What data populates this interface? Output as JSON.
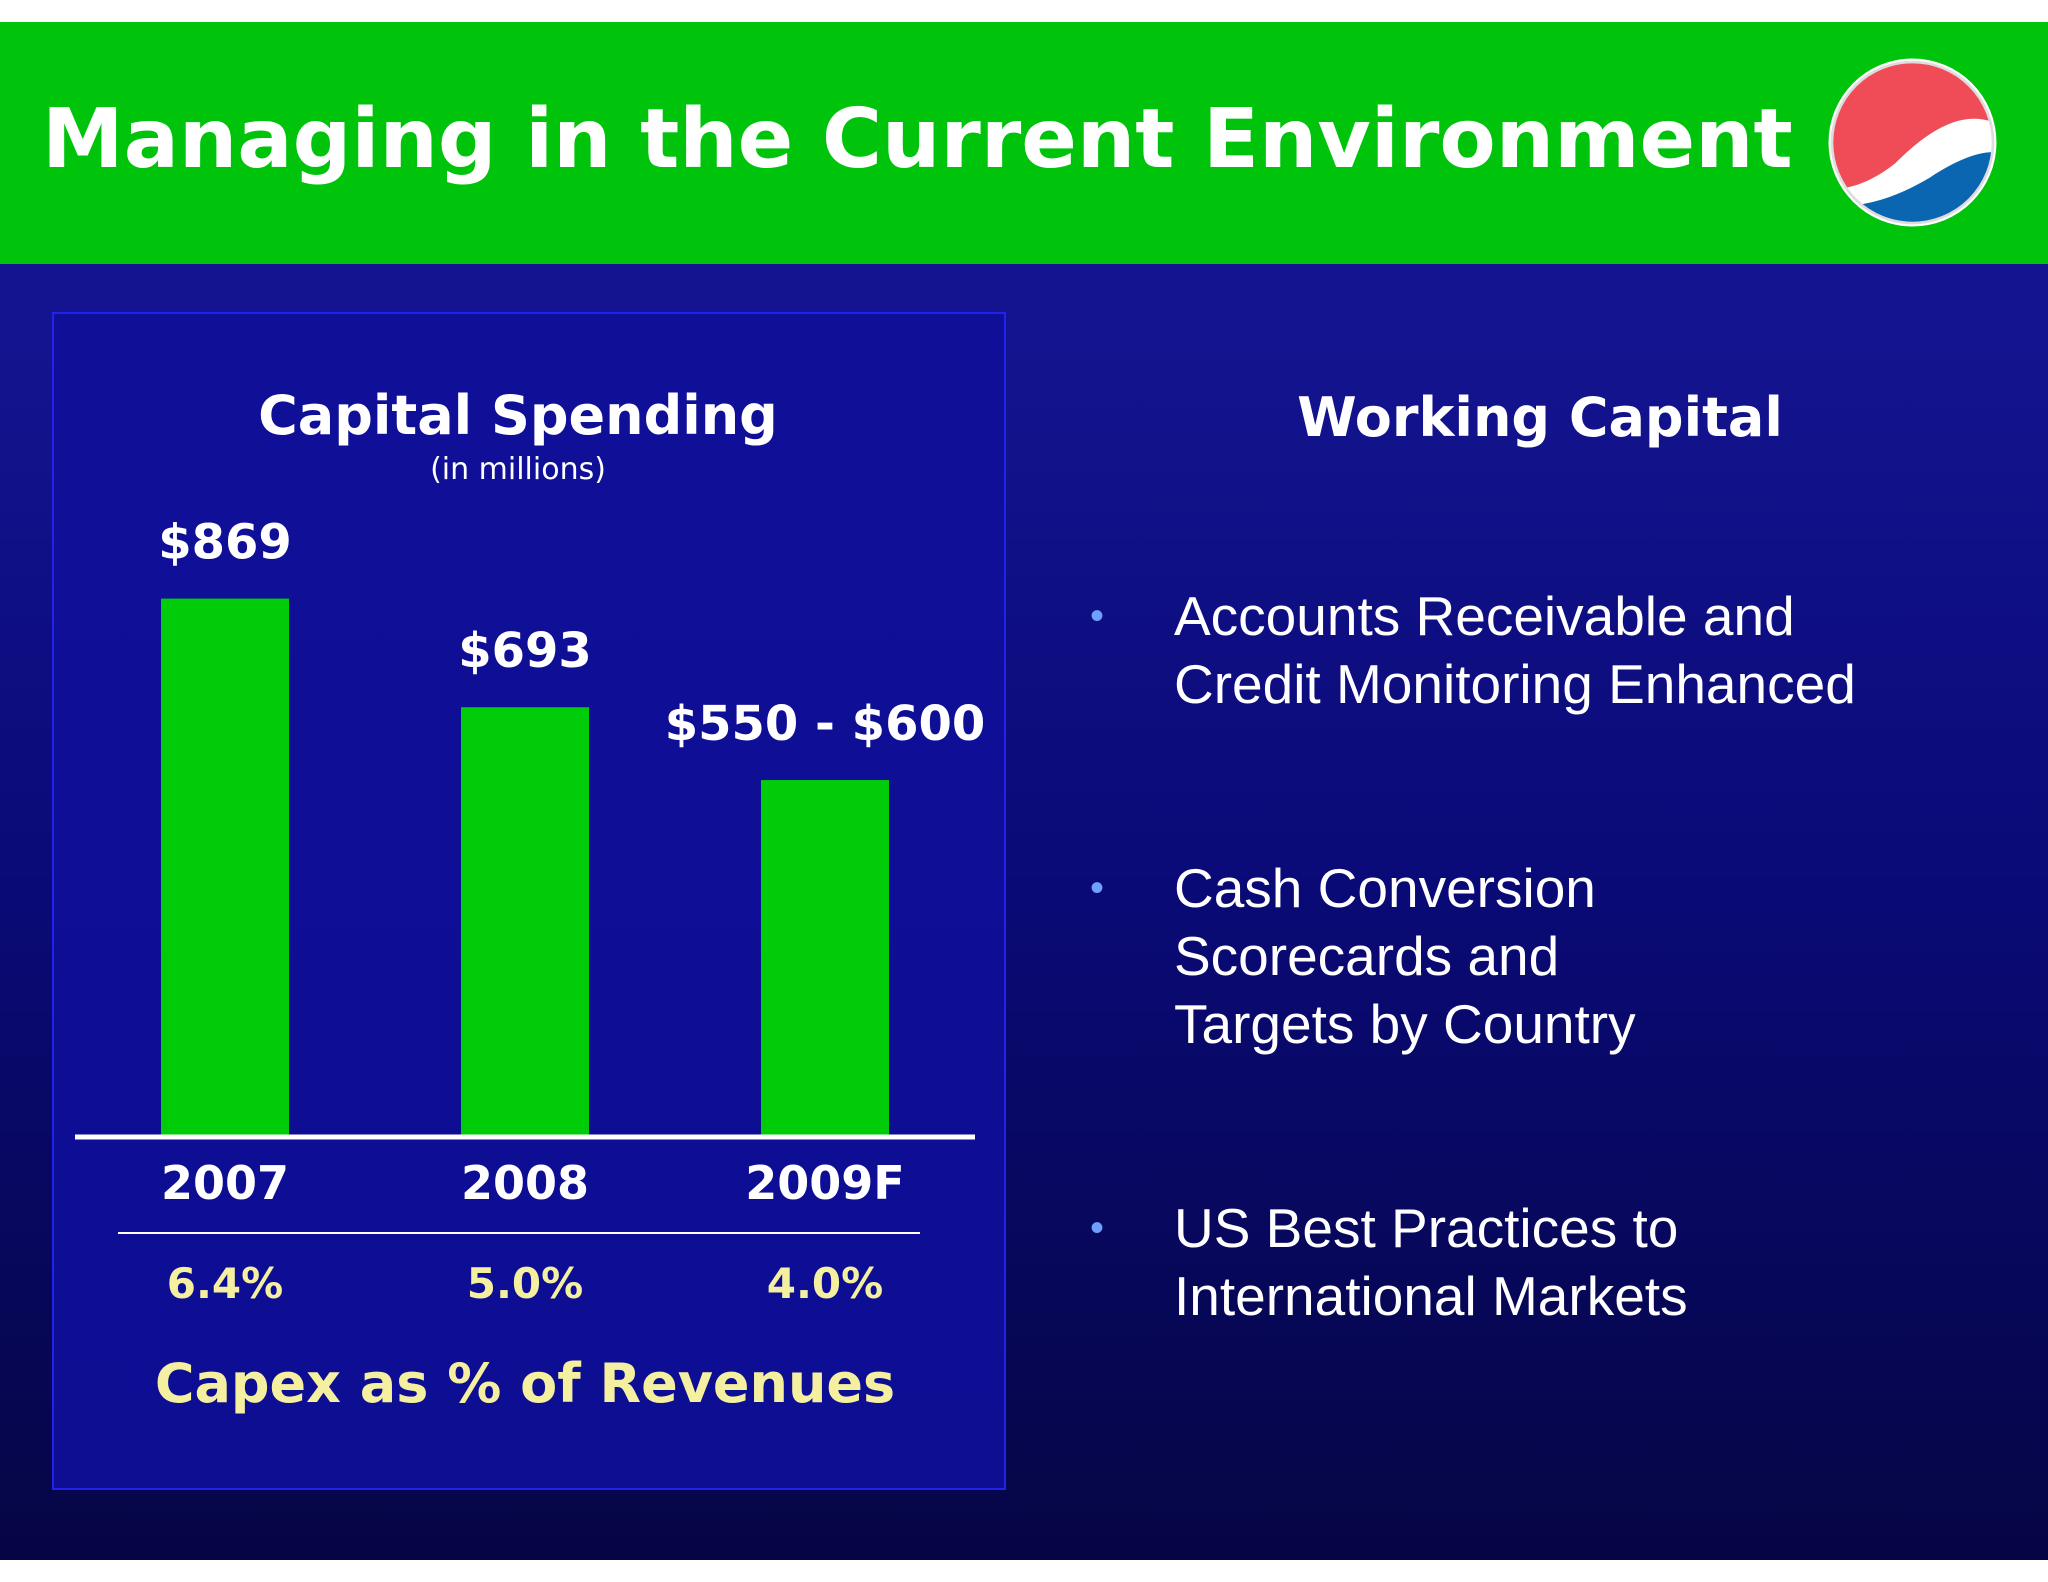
{
  "slide": {
    "title": "Managing in the Current Environment",
    "logo": "pepsi-globe-logo"
  },
  "colors": {
    "header_green": "#00c40c",
    "bar_green": "#00cc0a",
    "background_blue": "#0a0a80",
    "capex_label_yellow": "#f4f0a0",
    "bullet_blue": "#6fa0ff"
  },
  "chart_data": {
    "type": "bar",
    "title": "Capital Spending",
    "subtitle": "(in millions)",
    "categories": [
      "2007",
      "2008",
      "2009F"
    ],
    "values": [
      869,
      693,
      575
    ],
    "data_labels": [
      "$869",
      "$693",
      "$550 - $600"
    ],
    "ylim": [
      0,
      900
    ],
    "grid": false,
    "xlabel": "",
    "ylabel": "",
    "secondary_row": {
      "label": "Capex as % of Revenues",
      "values": [
        "6.4%",
        "5.0%",
        "4.0%"
      ]
    }
  },
  "working_capital": {
    "title": "Working Capital",
    "bullets": [
      [
        "Accounts Receivable and",
        "Credit Monitoring Enhanced"
      ],
      [
        "Cash Conversion",
        "Scorecards and",
        "Targets by Country"
      ],
      [
        "US Best Practices to",
        "International Markets"
      ]
    ]
  },
  "bullet_glyph": "•"
}
